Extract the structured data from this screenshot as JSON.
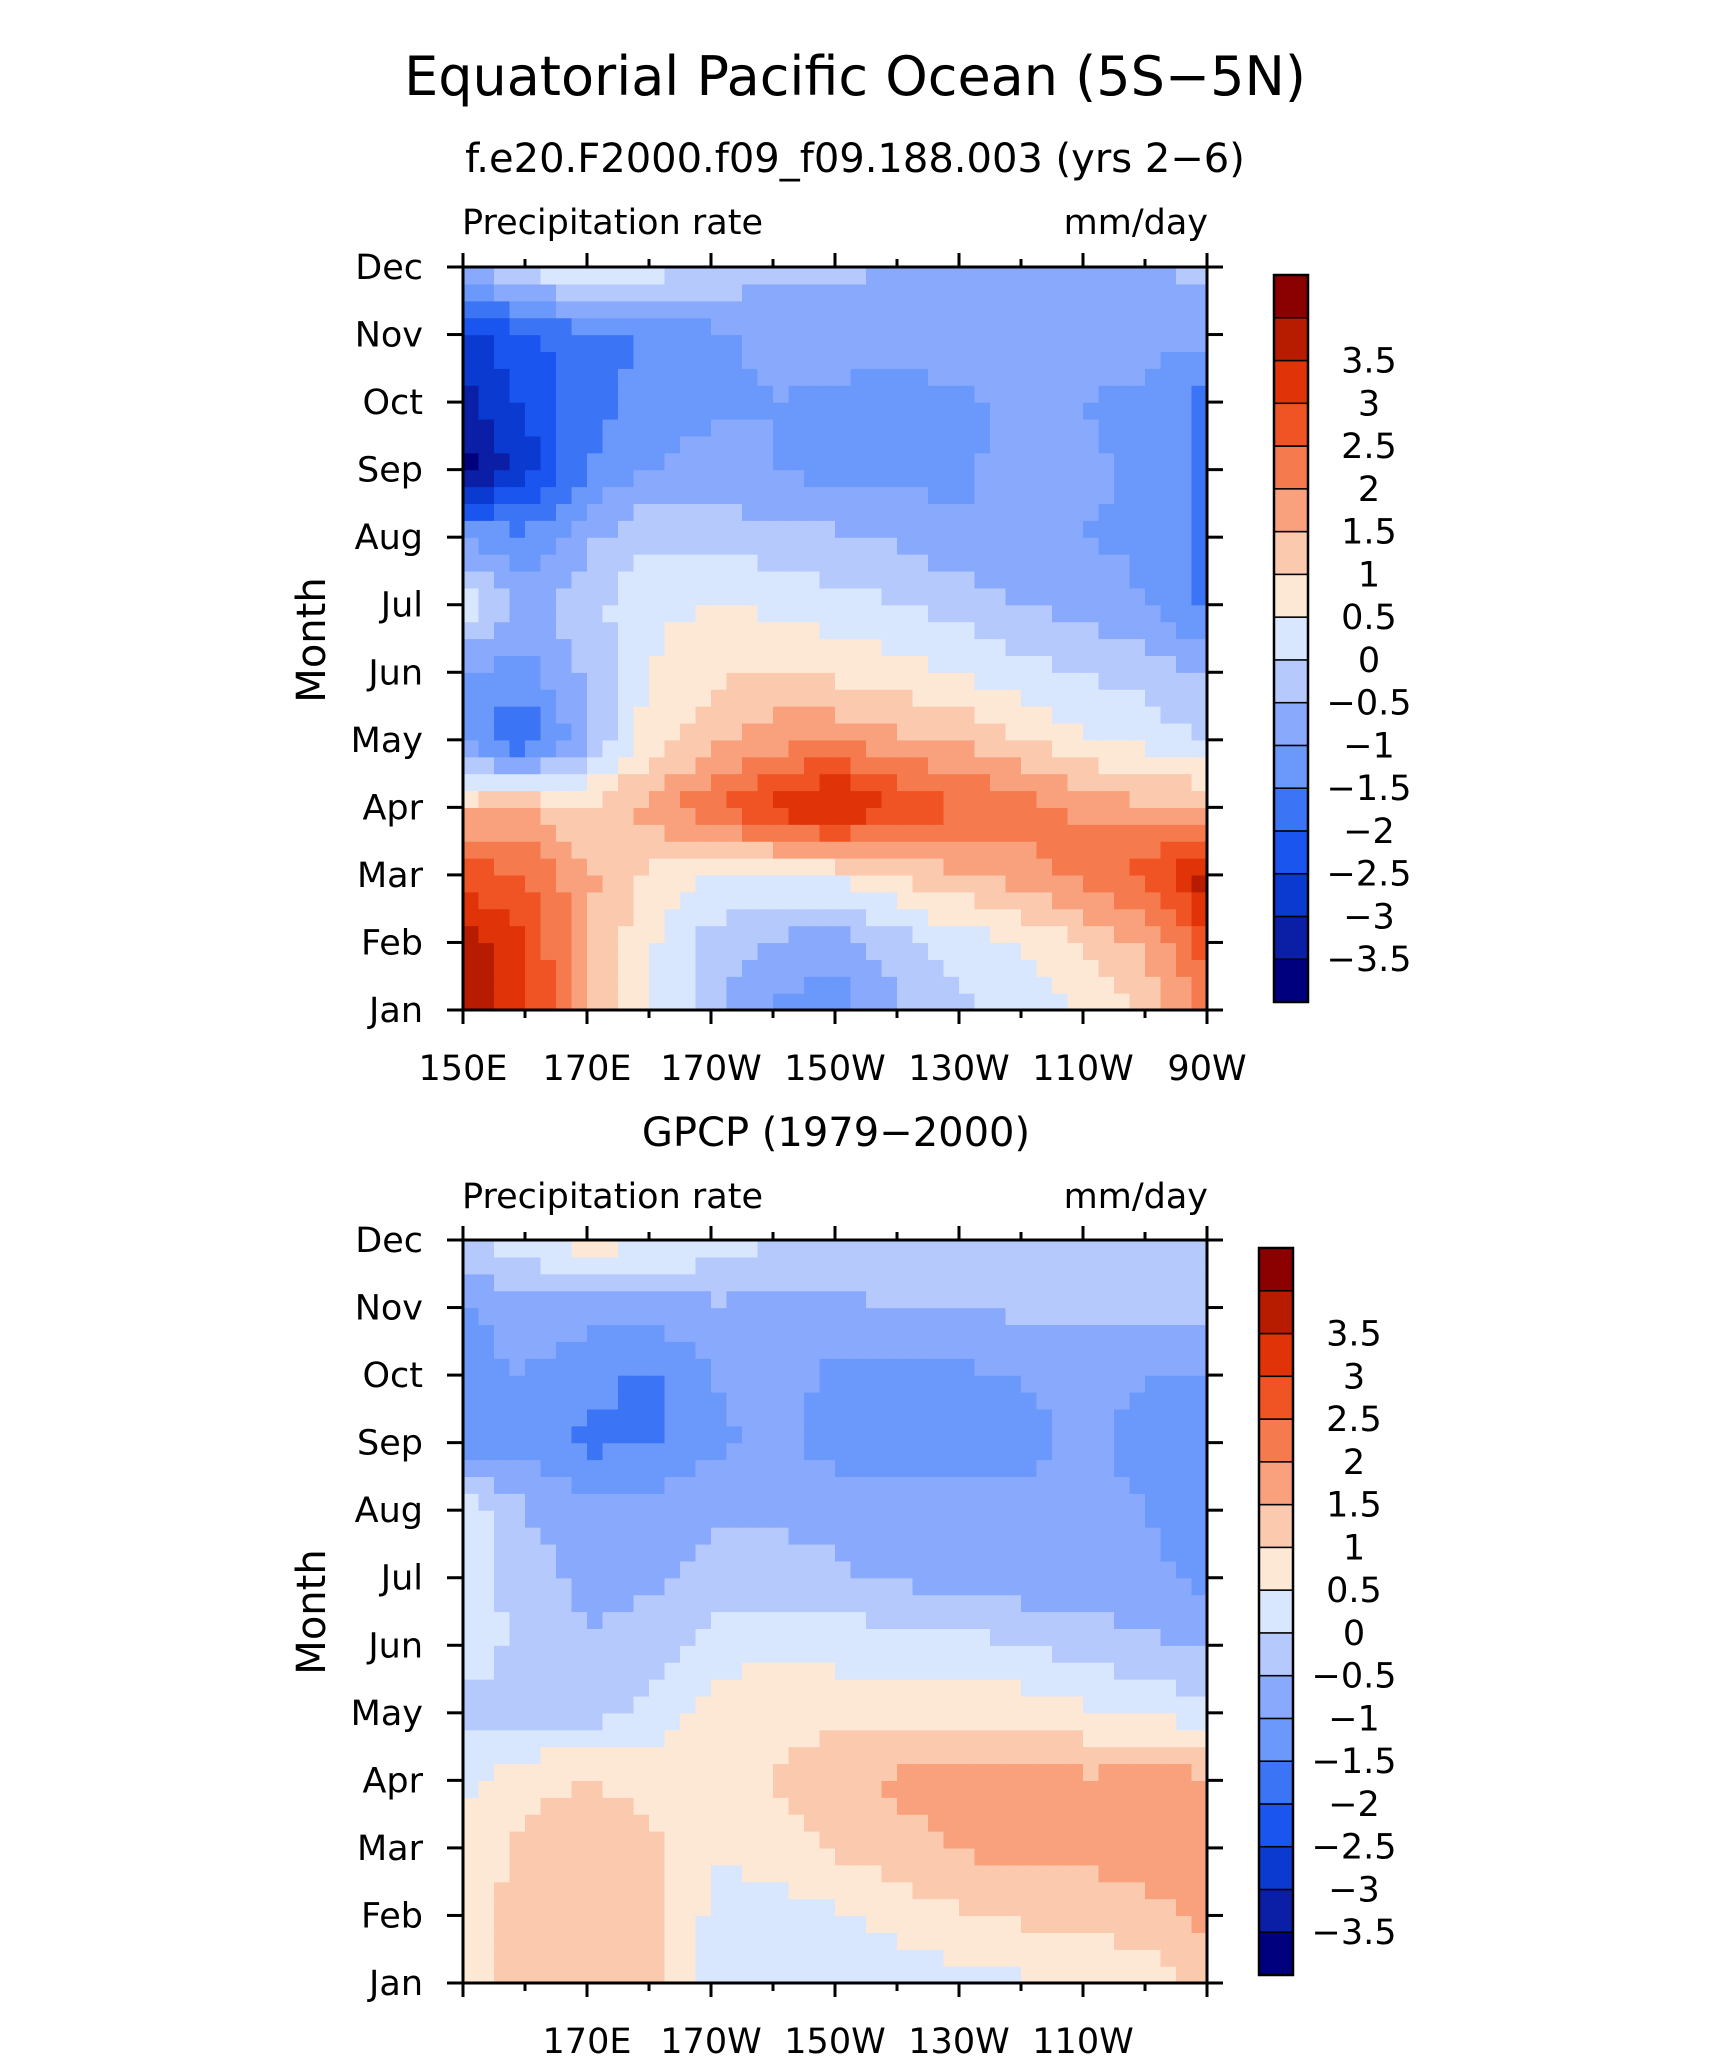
{
  "figure": {
    "title": "Equatorial Pacific Ocean (5S−5N)"
  },
  "chart_data": [
    {
      "type": "heatmap",
      "title": "f.e20.F2000.f09_f09.188.003 (yrs 2−6)",
      "left_label": "Precipitation rate",
      "right_label": "mm/day",
      "ylabel": "Month",
      "x_range": [
        "150E",
        "90W"
      ],
      "x_ticks": [
        "150E",
        "170E",
        "170W",
        "150W",
        "130W",
        "110W",
        "90W"
      ],
      "y_ticks": [
        "Jan",
        "Feb",
        "Mar",
        "Apr",
        "May",
        "Jun",
        "Jul",
        "Aug",
        "Sep",
        "Oct",
        "Nov",
        "Dec"
      ],
      "x_grid": [
        "150E",
        "160E",
        "170E",
        "180",
        "170W",
        "160W",
        "150W",
        "140W",
        "130W",
        "120W",
        "110W",
        "100W",
        "90W"
      ],
      "y_grid": [
        "Jan",
        "Feb",
        "Mar",
        "Apr",
        "May",
        "Jun",
        "Jul",
        "Aug",
        "Sep",
        "Oct",
        "Nov",
        "Dec"
      ],
      "values": [
        [
          4.0,
          3.2,
          1.5,
          0.6,
          -0.3,
          -1.1,
          -1.3,
          -0.6,
          -0.1,
          0.2,
          0.6,
          1.0,
          2.2
        ],
        [
          3.8,
          3.0,
          1.6,
          0.6,
          -0.2,
          -0.6,
          -0.8,
          -0.2,
          0.2,
          0.5,
          1.0,
          1.6,
          2.8
        ],
        [
          2.8,
          2.5,
          1.6,
          0.9,
          0.5,
          0.5,
          0.6,
          1.0,
          1.4,
          1.8,
          2.2,
          2.7,
          3.8
        ],
        [
          1.3,
          1.5,
          1.0,
          1.7,
          2.4,
          3.2,
          3.8,
          3.0,
          2.6,
          2.2,
          1.9,
          1.6,
          1.5
        ],
        [
          -1.2,
          -2.1,
          -0.6,
          0.8,
          1.3,
          1.8,
          1.9,
          1.6,
          1.4,
          1.0,
          0.6,
          0.3,
          0.0
        ],
        [
          -1.0,
          -1.2,
          -0.4,
          0.5,
          0.9,
          1.0,
          0.9,
          0.7,
          0.5,
          0.2,
          0.0,
          -0.2,
          -0.6
        ],
        [
          0.3,
          -0.6,
          -0.2,
          0.4,
          0.5,
          0.4,
          0.2,
          0.0,
          -0.2,
          -0.5,
          -0.7,
          -1.0,
          -1.6
        ],
        [
          -1.0,
          -1.4,
          -0.6,
          -0.1,
          -0.2,
          -0.3,
          -0.4,
          -0.6,
          -0.9,
          -1.0,
          -1.0,
          -1.1,
          -1.6
        ],
        [
          -3.8,
          -2.8,
          -1.5,
          -1.0,
          -0.8,
          -1.0,
          -1.2,
          -1.2,
          -1.1,
          -0.8,
          -0.9,
          -1.1,
          -1.6
        ],
        [
          -3.2,
          -2.4,
          -1.7,
          -1.3,
          -1.1,
          -1.0,
          -1.1,
          -1.2,
          -1.1,
          -0.9,
          -1.0,
          -1.2,
          -1.7
        ],
        [
          -2.6,
          -2.2,
          -1.6,
          -1.5,
          -1.1,
          -0.9,
          -0.8,
          -0.8,
          -0.7,
          -0.6,
          -0.6,
          -0.7,
          -0.9
        ],
        [
          -0.5,
          0.1,
          0.6,
          0.3,
          -0.1,
          -0.3,
          -0.4,
          -0.5,
          -0.6,
          -0.6,
          -0.6,
          -0.5,
          -0.4
        ]
      ]
    },
    {
      "type": "heatmap",
      "title": "GPCP (1979−2000)",
      "left_label": "Precipitation rate",
      "right_label": "mm/day",
      "ylabel": "Month",
      "x_range": [
        "150E",
        "90W"
      ],
      "x_ticks": [
        "170E",
        "170W",
        "150W",
        "130W",
        "110W"
      ],
      "y_ticks": [
        "Jan",
        "Feb",
        "Mar",
        "Apr",
        "May",
        "Jun",
        "Jul",
        "Aug",
        "Sep",
        "Oct",
        "Nov",
        "Dec"
      ],
      "x_grid": [
        "150E",
        "160E",
        "170E",
        "180",
        "170W",
        "160W",
        "150W",
        "140W",
        "130W",
        "120W",
        "110W",
        "100W",
        "90W"
      ],
      "y_grid": [
        "Jan",
        "Feb",
        "Mar",
        "Apr",
        "May",
        "Jun",
        "Jul",
        "Aug",
        "Sep",
        "Oct",
        "Nov",
        "Dec"
      ],
      "values": [
        [
          0.7,
          1.2,
          1.4,
          1.1,
          0.4,
          0.2,
          0.2,
          0.2,
          0.3,
          0.4,
          0.5,
          0.7,
          1.2
        ],
        [
          0.8,
          1.2,
          1.3,
          1.2,
          0.4,
          0.3,
          0.4,
          0.7,
          0.9,
          1.1,
          1.2,
          1.3,
          1.6
        ],
        [
          0.7,
          1.1,
          1.3,
          1.1,
          0.5,
          0.7,
          1.1,
          1.3,
          1.5,
          1.7,
          1.6,
          1.8,
          1.9
        ],
        [
          0.4,
          0.9,
          1.0,
          0.9,
          0.8,
          1.0,
          1.4,
          1.6,
          1.7,
          1.8,
          1.6,
          1.8,
          1.6
        ],
        [
          -0.2,
          -0.2,
          -0.2,
          0.2,
          0.7,
          0.9,
          0.8,
          0.8,
          0.9,
          0.8,
          0.6,
          0.4,
          0.2
        ],
        [
          0.4,
          -0.2,
          -0.5,
          -0.3,
          0.2,
          0.4,
          0.3,
          0.3,
          0.2,
          0.0,
          -0.2,
          -0.4,
          -0.5
        ],
        [
          0.4,
          -0.3,
          -0.6,
          -0.6,
          -0.3,
          -0.3,
          -0.4,
          -0.6,
          -0.7,
          -0.8,
          -0.8,
          -0.9,
          -1.1
        ],
        [
          0.4,
          -0.5,
          -0.8,
          -0.8,
          -0.6,
          -0.6,
          -0.7,
          -0.8,
          -0.8,
          -0.9,
          -0.9,
          -1.0,
          -1.2
        ],
        [
          -1.2,
          -1.1,
          -1.6,
          -1.6,
          -1.1,
          -0.9,
          -1.2,
          -1.3,
          -1.2,
          -1.1,
          -0.9,
          -1.1,
          -1.2
        ],
        [
          -1.1,
          -1.0,
          -1.3,
          -1.6,
          -1.0,
          -0.8,
          -1.1,
          -1.2,
          -1.1,
          -1.0,
          -0.9,
          -1.0,
          -1.1
        ],
        [
          -1.1,
          -0.8,
          -0.8,
          -0.8,
          -0.6,
          -0.6,
          -0.6,
          -0.5,
          -0.5,
          -0.4,
          -0.4,
          -0.3,
          -0.3
        ],
        [
          0.0,
          0.3,
          0.8,
          0.6,
          0.3,
          0.0,
          -0.1,
          -0.2,
          -0.2,
          -0.1,
          -0.2,
          -0.3,
          -0.3
        ]
      ]
    }
  ],
  "colorbar": {
    "levels": [
      -3.5,
      -3,
      -2.5,
      -2,
      -1.5,
      -1,
      -0.5,
      0,
      0.5,
      1,
      1.5,
      2,
      2.5,
      3,
      3.5
    ],
    "labels": [
      "−3.5",
      "−3",
      "−2.5",
      "−2",
      "−1.5",
      "−1",
      "−0.5",
      "0",
      "0.5",
      "1",
      "1.5",
      "2",
      "2.5",
      "3",
      "3.5"
    ],
    "colors": [
      "#00007f",
      "#0a1fa6",
      "#0b3ad1",
      "#1b55ef",
      "#3b74f5",
      "#6a99fb",
      "#89aafc",
      "#b5c9fd",
      "#d8e6fe",
      "#fde8d6",
      "#fbc9ae",
      "#f9a07d",
      "#f57a4d",
      "#f05424",
      "#e03308",
      "#b81c00",
      "#8b0000"
    ]
  }
}
